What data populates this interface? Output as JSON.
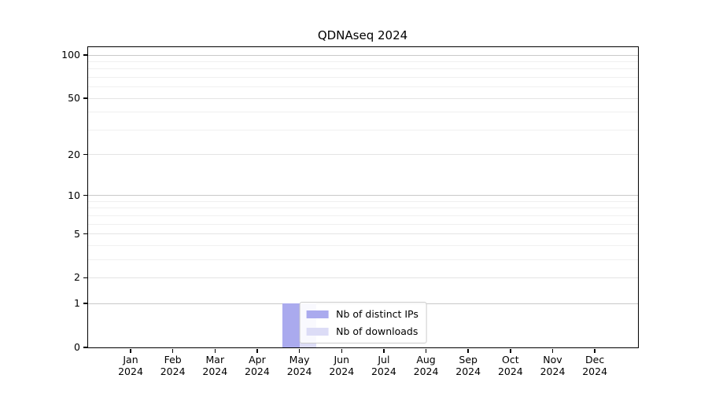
{
  "chart_data": {
    "type": "bar",
    "title": "QDNAseq 2024",
    "year": "2024",
    "categories": [
      "Jan",
      "Feb",
      "Mar",
      "Apr",
      "May",
      "Jun",
      "Jul",
      "Aug",
      "Sep",
      "Oct",
      "Nov",
      "Dec"
    ],
    "series": [
      {
        "name": "Nb of distinct IPs",
        "color": "#aaaaee",
        "values": [
          0,
          0,
          0,
          0,
          1,
          0,
          0,
          0,
          0,
          0,
          0,
          0
        ]
      },
      {
        "name": "Nb of downloads",
        "color": "#dcdcf6",
        "values": [
          0,
          0,
          0,
          0,
          1,
          0,
          0,
          0,
          0,
          0,
          0,
          0
        ]
      }
    ],
    "xlabel": "",
    "ylabel": "",
    "y_axis": {
      "scale": "log1p",
      "ticks": [
        0,
        1,
        2,
        5,
        10,
        20,
        50,
        100
      ],
      "minor_ticks": [
        3,
        4,
        6,
        7,
        8,
        9,
        30,
        40,
        60,
        70,
        80,
        90
      ],
      "range": [
        0,
        113
      ]
    },
    "legend": {
      "position": "lower center"
    },
    "grid": true
  }
}
